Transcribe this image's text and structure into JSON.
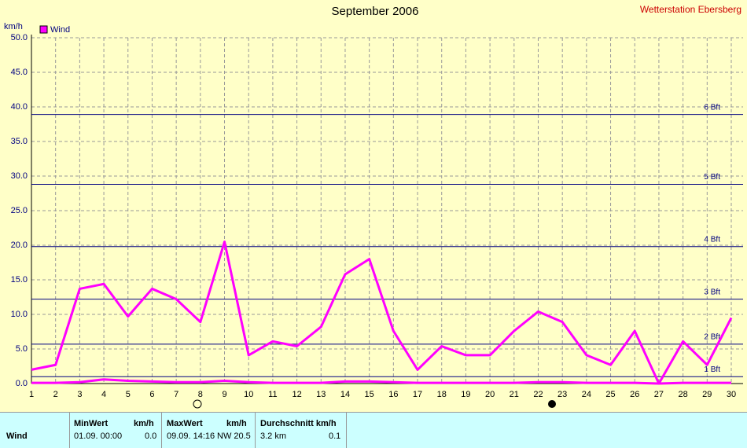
{
  "chart_data": {
    "type": "line",
    "title": "September 2006",
    "station": "Wetterstation Ebersberg",
    "y_label": "km/h",
    "x": [
      1,
      2,
      3,
      4,
      5,
      6,
      7,
      8,
      9,
      10,
      11,
      12,
      13,
      14,
      15,
      16,
      17,
      18,
      19,
      20,
      21,
      22,
      23,
      24,
      25,
      26,
      27,
      28,
      29,
      30
    ],
    "xlim": [
      1,
      30
    ],
    "xticks": [
      1,
      2,
      3,
      4,
      5,
      6,
      7,
      8,
      9,
      10,
      11,
      12,
      13,
      14,
      15,
      16,
      17,
      18,
      19,
      20,
      21,
      22,
      23,
      24,
      25,
      26,
      27,
      28,
      29,
      30
    ],
    "ylim": [
      0,
      50
    ],
    "yticks": [
      {
        "value": 0,
        "label": "0.0"
      },
      {
        "value": 5,
        "label": "5.0"
      },
      {
        "value": 10,
        "label": "10.0"
      },
      {
        "value": 15,
        "label": "15.0"
      },
      {
        "value": 20,
        "label": "20.0"
      },
      {
        "value": 25,
        "label": "25.0"
      },
      {
        "value": 30,
        "label": "30.0"
      },
      {
        "value": 35,
        "label": "35.0"
      },
      {
        "value": 40,
        "label": "40.0"
      },
      {
        "value": 45,
        "label": "45.0"
      },
      {
        "value": 50,
        "label": "50.0"
      }
    ],
    "grid": true,
    "series": [
      {
        "name": "Wind",
        "color": "#ff00ff",
        "values": [
          2.0,
          2.7,
          13.7,
          14.4,
          9.7,
          13.7,
          12.2,
          8.9,
          20.5,
          4.1,
          6.1,
          5.4,
          8.2,
          15.8,
          18.0,
          7.6,
          2.0,
          5.4,
          4.1,
          4.1,
          7.6,
          10.4,
          8.9,
          4.1,
          2.7,
          7.6,
          0.0,
          6.1,
          2.7,
          9.5
        ]
      },
      {
        "color": "#ff00ff",
        "values": [
          0.1,
          0.1,
          0.2,
          0.6,
          0.4,
          0.3,
          0.2,
          0.2,
          0.4,
          0.2,
          0.1,
          0.1,
          0.1,
          0.3,
          0.3,
          0.2,
          0.1,
          0.1,
          0.1,
          0.1,
          0.1,
          0.2,
          0.2,
          0.1,
          0.1,
          0.1,
          0.0,
          0.1,
          0.1,
          0.1
        ]
      }
    ],
    "reference_lines": [
      {
        "value": 1.0,
        "label": "1 Bft"
      },
      {
        "value": 5.7,
        "label": "2 Bft"
      },
      {
        "value": 12.2,
        "label": "3 Bft"
      },
      {
        "value": 19.8,
        "label": "4 Bft"
      },
      {
        "value": 28.8,
        "label": "5 Bft"
      },
      {
        "value": 38.9,
        "label": "6 Bft"
      }
    ],
    "reference_color": "#000080"
  },
  "table": {
    "row_label": "Wind",
    "min_head": "MinWert",
    "min_unit": "km/h",
    "min_time": "01.09.  00:00",
    "min_value": "0.0",
    "max_head": "MaxWert",
    "max_unit": "km/h",
    "max_time": "09.09.  14:16",
    "max_value": "NW 20.5",
    "avg_head": "Durchschnitt km/h",
    "avg_dist": "3.2 km",
    "avg_value": "0.1"
  }
}
